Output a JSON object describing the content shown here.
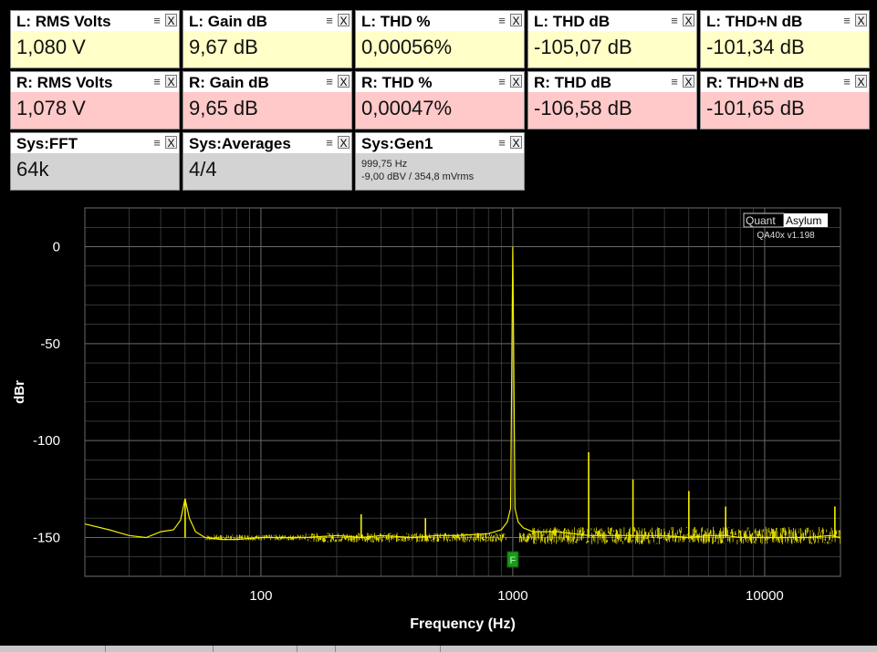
{
  "tiles": [
    {
      "title": "L: RMS Volts",
      "value": "1,080 V",
      "theme": "left"
    },
    {
      "title": "L: Gain dB",
      "value": "9,67 dB",
      "theme": "left"
    },
    {
      "title": "L: THD %",
      "value": "0,00056%",
      "theme": "left"
    },
    {
      "title": "L: THD dB",
      "value": "-105,07 dB",
      "theme": "left"
    },
    {
      "title": "L: THD+N dB",
      "value": "-101,34 dB",
      "theme": "left"
    },
    {
      "title": "R: RMS Volts",
      "value": "1,078 V",
      "theme": "right"
    },
    {
      "title": "R: Gain dB",
      "value": "9,65 dB",
      "theme": "right"
    },
    {
      "title": "R: THD %",
      "value": "0,00047%",
      "theme": "right"
    },
    {
      "title": "R: THD dB",
      "value": "-106,58 dB",
      "theme": "right"
    },
    {
      "title": "R: THD+N dB",
      "value": "-101,65 dB",
      "theme": "right"
    },
    {
      "title": "Sys:FFT",
      "value": "64k",
      "theme": "sys"
    },
    {
      "title": "Sys:Averages",
      "value": "4/4",
      "theme": "sys"
    },
    {
      "title": "Sys:Gen1",
      "value": "",
      "lines": [
        "999,75 Hz",
        "-9,00 dBV  / 354,8 mVrms"
      ],
      "theme": "sys"
    }
  ],
  "tile_icons": {
    "menu": "menu-icon",
    "close": "close-icon",
    "close_glyph": "X",
    "menu_glyph": "≡"
  },
  "brand": {
    "part1": "Quant",
    "part2": "Asylum",
    "version": "QA40x v1.198"
  },
  "marker_label": "F",
  "colors": {
    "trace": "#f5f000",
    "grid": "#555555",
    "axis_text": "#ffffff",
    "marker": "#1a9a1a"
  },
  "chart_data": {
    "type": "line",
    "xlabel": "Frequency (Hz)",
    "ylabel": "dBr",
    "x_scale": "log",
    "xlim": [
      20,
      20000
    ],
    "ylim": [
      -170,
      20
    ],
    "x_ticks": [
      100,
      1000,
      10000
    ],
    "x_tick_labels": [
      "100",
      "1000",
      "10000"
    ],
    "y_ticks": [
      0,
      -50,
      -100,
      -150
    ],
    "y_tick_labels": [
      "0",
      "-50",
      "-100",
      "-150"
    ],
    "grid": true,
    "noise_floor_db": -150,
    "series": [
      {
        "x": [
          20,
          25,
          30,
          35,
          40,
          45,
          48,
          50,
          52,
          55,
          60,
          70,
          80,
          100,
          150,
          200,
          250,
          300,
          400,
          500,
          600,
          800,
          900,
          950,
          980,
          1000,
          1020,
          1050,
          1100,
          1200,
          1500,
          2000,
          2500,
          3000,
          4000,
          5000,
          6000,
          7000,
          8000,
          10000,
          12000,
          15000,
          18000,
          20000
        ],
        "y": [
          -143,
          -146,
          -149,
          -150,
          -147,
          -146,
          -141,
          -130,
          -140,
          -147,
          -150,
          -151,
          -151,
          -150,
          -150,
          -149,
          -150,
          -149,
          -150,
          -149,
          -149,
          -148,
          -146,
          -142,
          -135,
          0,
          -135,
          -142,
          -145,
          -147,
          -147,
          -149,
          -149,
          -149,
          -149,
          -150,
          -149,
          -149,
          -150,
          -150,
          -150,
          -150,
          -149,
          -150
        ]
      }
    ],
    "spurs": [
      {
        "x": 50,
        "y": -130
      },
      {
        "x": 250,
        "y": -138
      },
      {
        "x": 450,
        "y": -140
      },
      {
        "x": 2000,
        "y": -106
      },
      {
        "x": 3000,
        "y": -120
      },
      {
        "x": 5000,
        "y": -126
      },
      {
        "x": 7000,
        "y": -134
      },
      {
        "x": 19000,
        "y": -134
      }
    ],
    "marker_freq": 1000
  }
}
